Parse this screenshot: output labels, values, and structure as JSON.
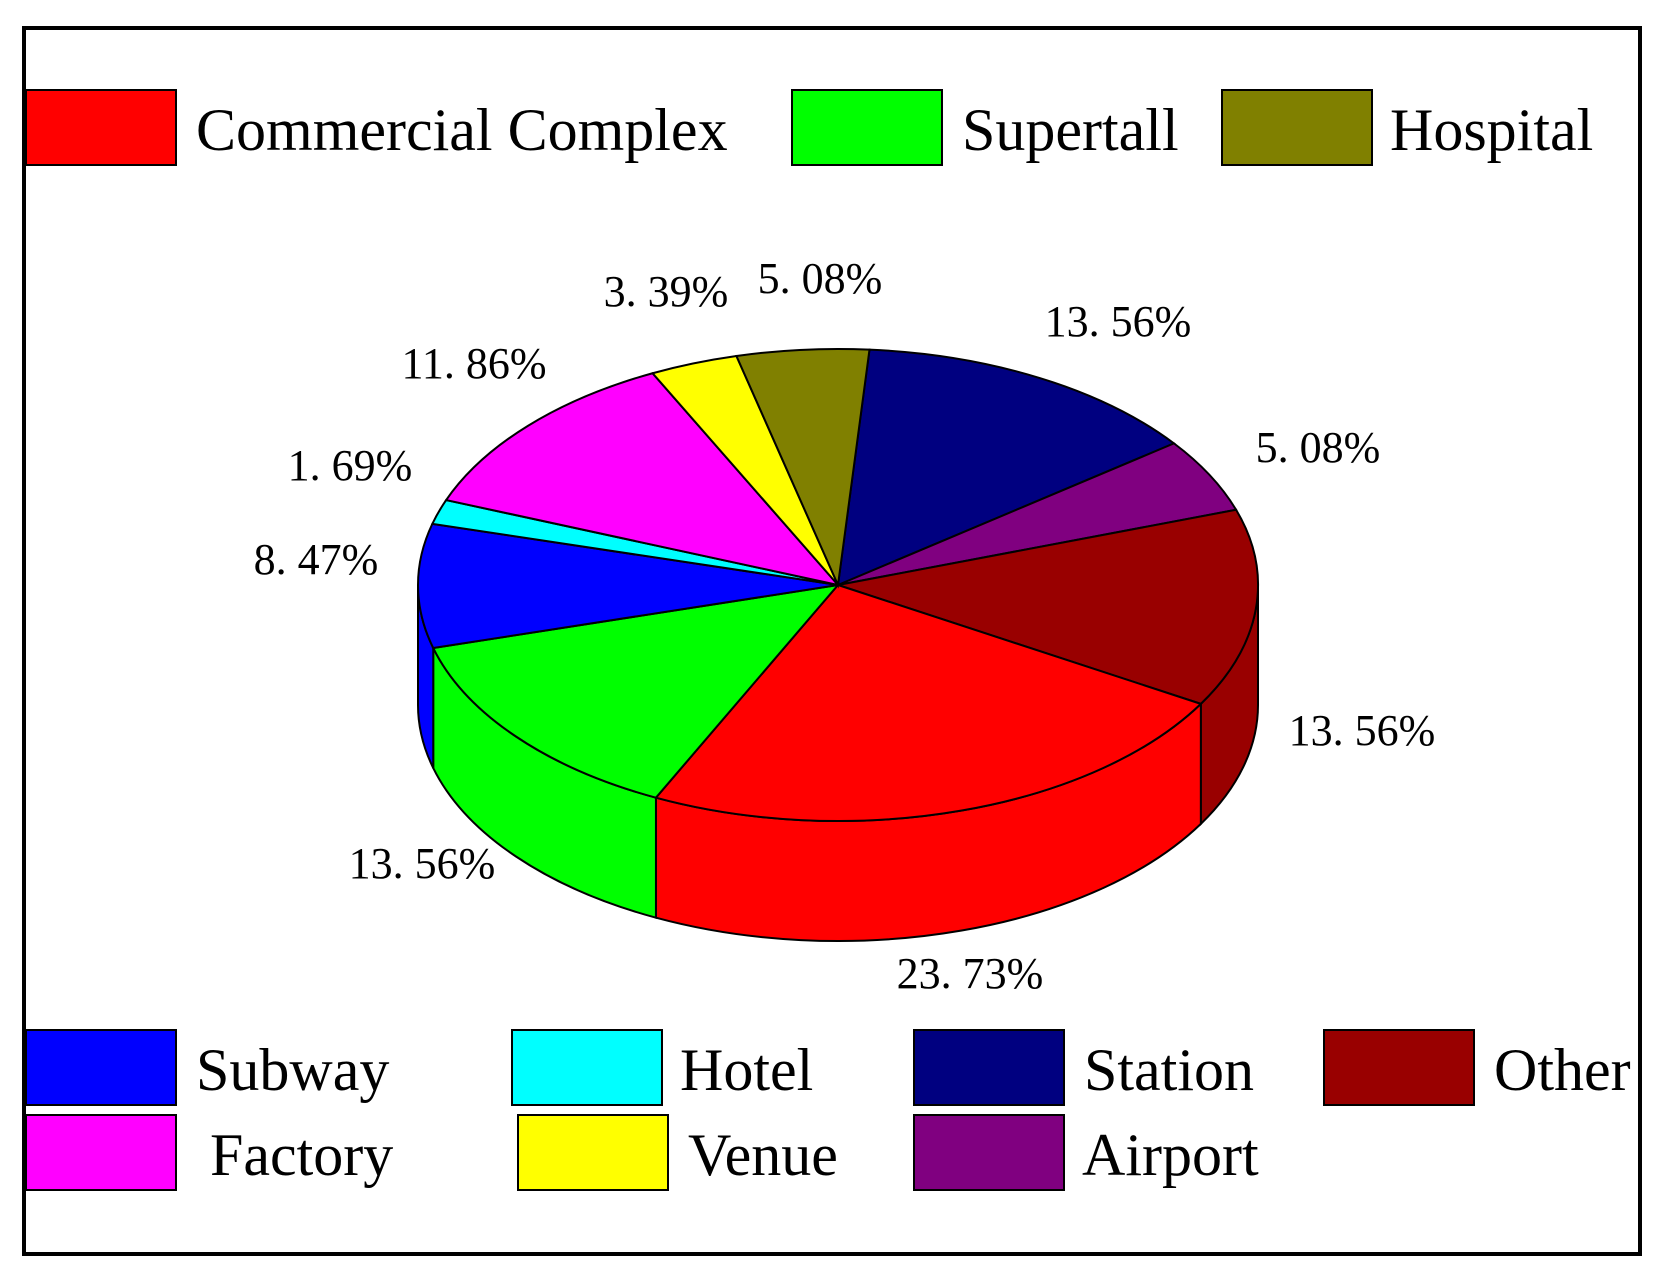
{
  "chart_data": {
    "type": "pie",
    "style": "3d-exploded-none",
    "legend_placement": "top and bottom",
    "slices": [
      {
        "name": "Commercial Complex",
        "value": 23.73,
        "label": "23. 73%",
        "color": "#ff0000"
      },
      {
        "name": "Supertall",
        "value": 13.56,
        "label": "13. 56%",
        "color": "#00ff00"
      },
      {
        "name": "Hospital",
        "value": 5.08,
        "label": "5. 08%",
        "color": "#808000"
      },
      {
        "name": "Subway",
        "value": 8.47,
        "label": "8. 47%",
        "color": "#0000ff"
      },
      {
        "name": "Hotel",
        "value": 1.69,
        "label": "1. 69%",
        "color": "#00ffff"
      },
      {
        "name": "Station",
        "value": 13.56,
        "label": "13. 56%",
        "color": "#000080"
      },
      {
        "name": "Other",
        "value": 13.56,
        "label": "13. 56%",
        "color": "#990000"
      },
      {
        "name": "Factory",
        "value": 11.86,
        "label": "11. 86%",
        "color": "#ff00ff"
      },
      {
        "name": "Venue",
        "value": 3.39,
        "label": "3. 39%",
        "color": "#ffff00"
      },
      {
        "name": "Airport",
        "value": 5.08,
        "label": "5. 08%",
        "color": "#800080"
      }
    ]
  }
}
